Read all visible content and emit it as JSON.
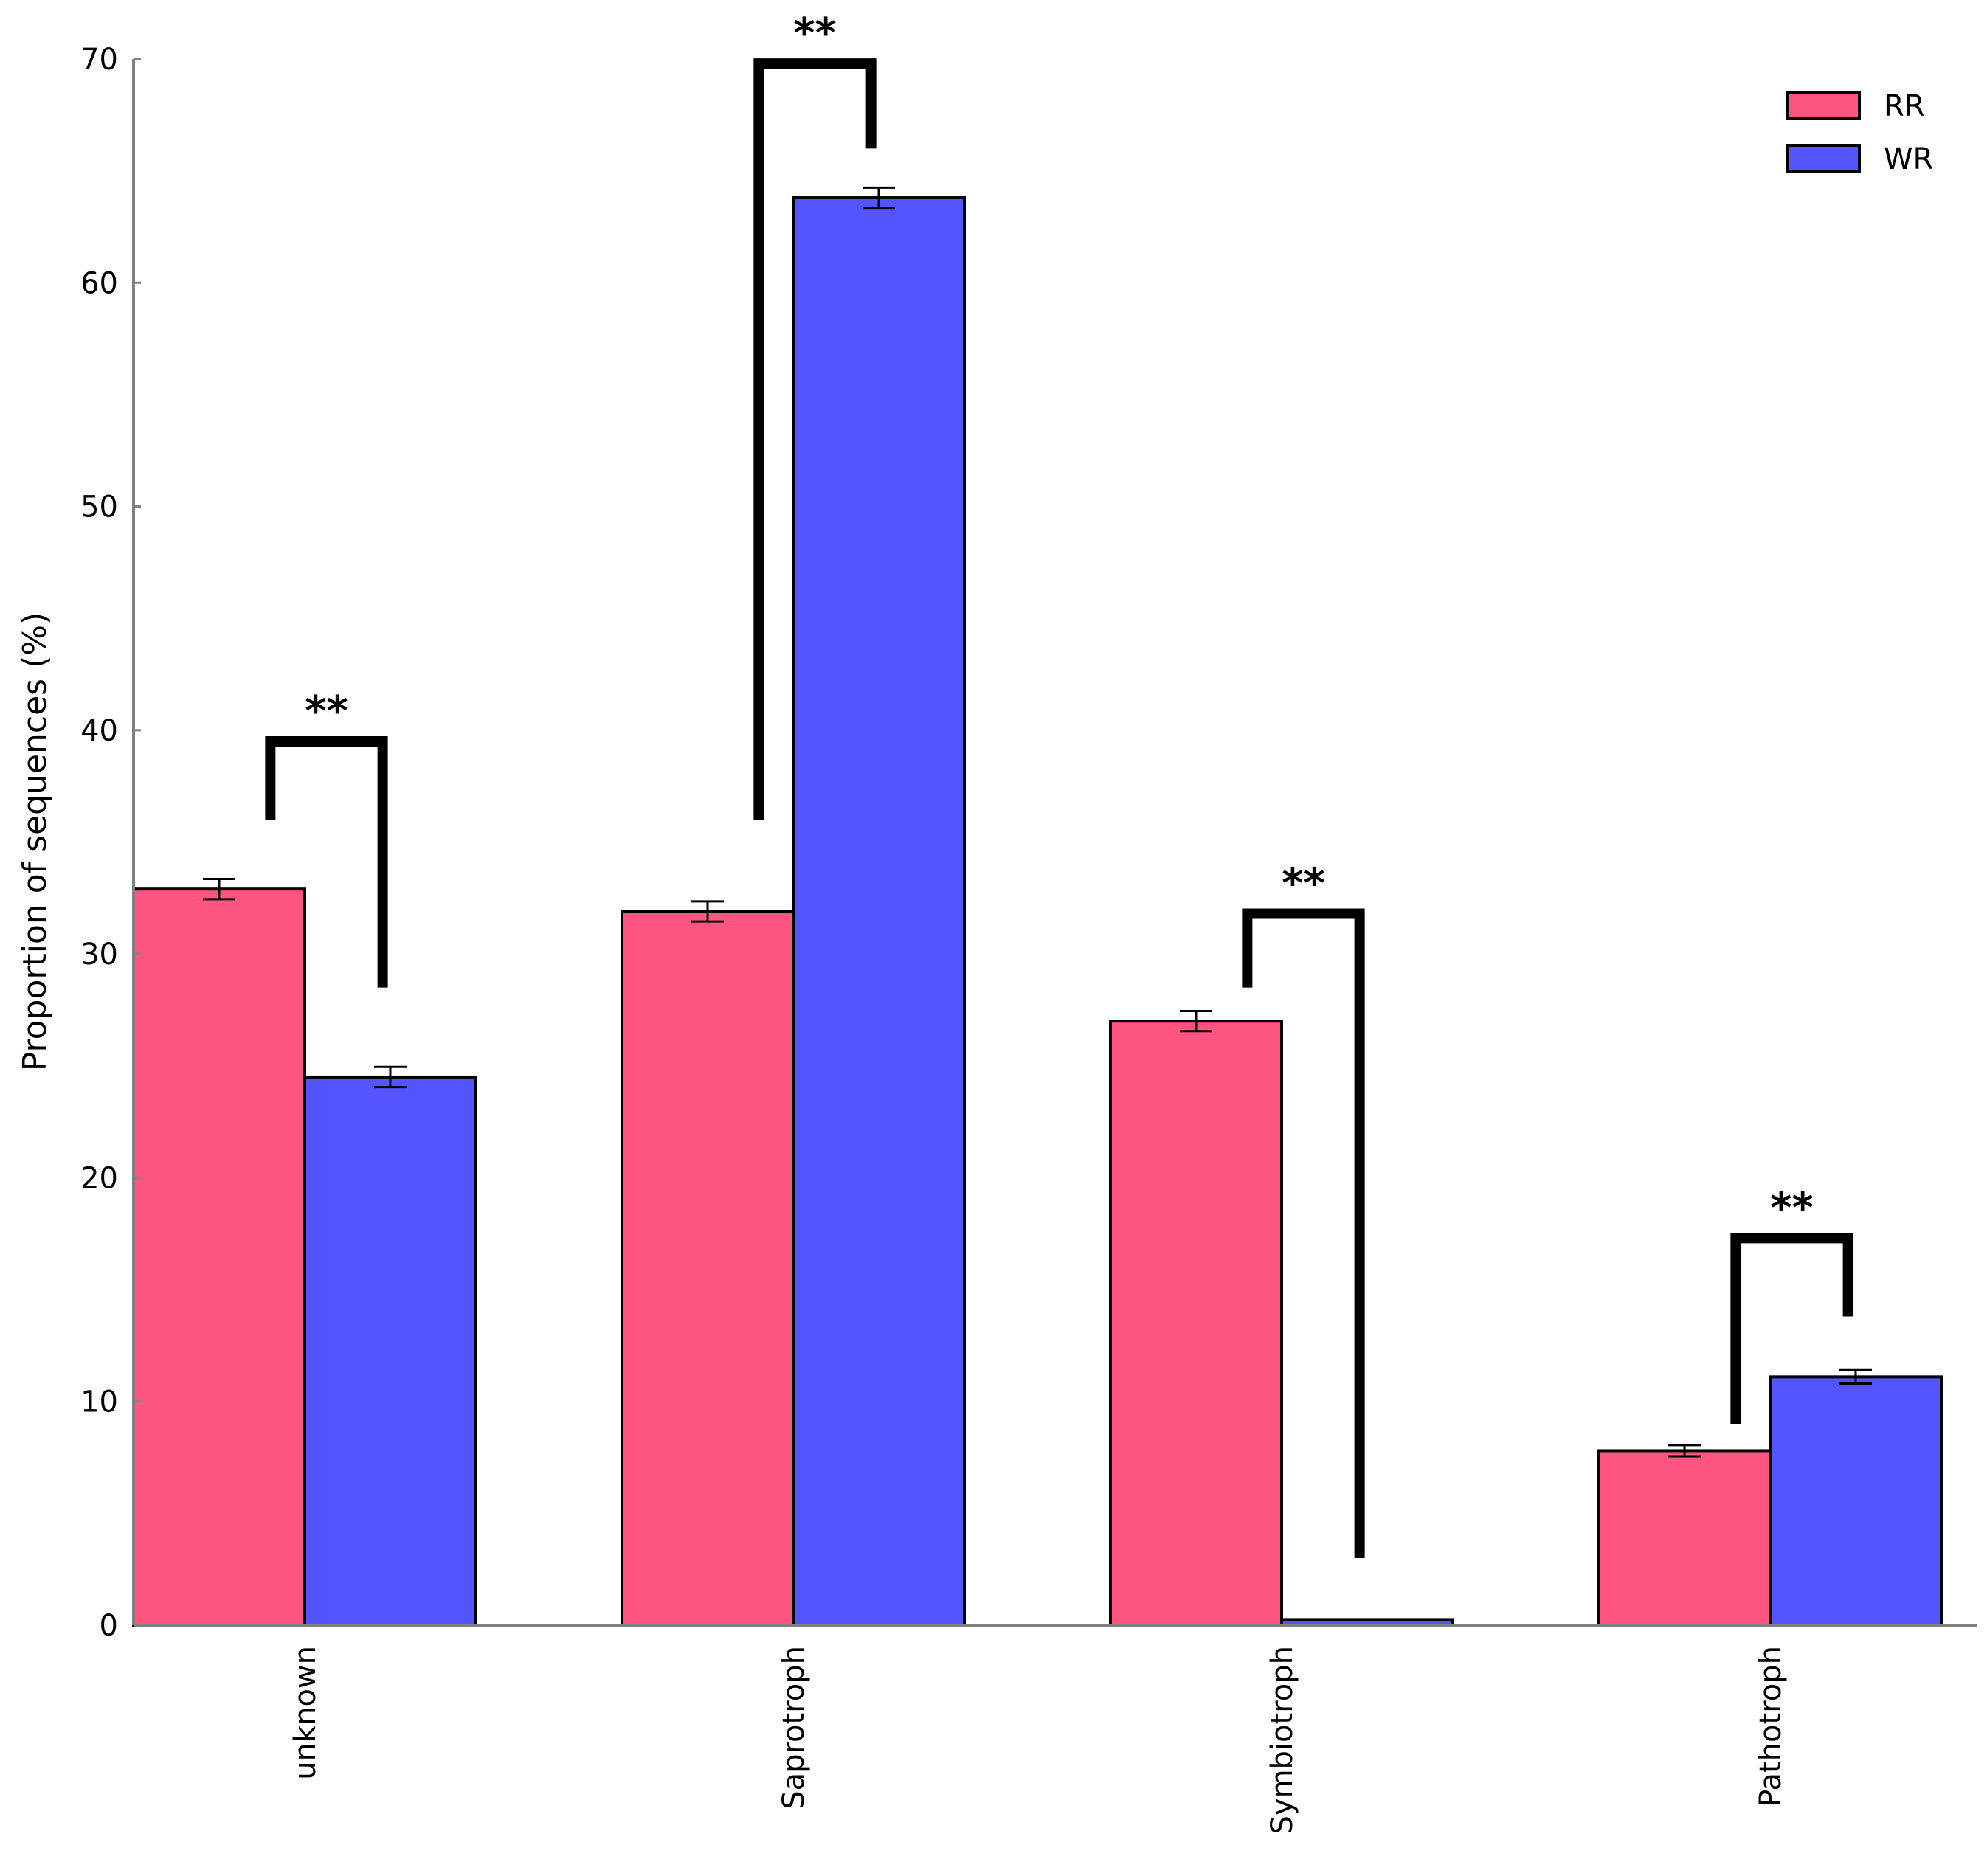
{
  "chart_data": {
    "type": "bar",
    "title": "",
    "xlabel": "",
    "ylabel": "Proportion of sequences (%)",
    "ylim": [
      0,
      70
    ],
    "yticks": [
      0,
      10,
      20,
      30,
      40,
      50,
      60,
      70
    ],
    "grid": false,
    "legend_position": "top-right",
    "categories": [
      "unknown",
      "Saprotroph",
      "Symbiotroph",
      "Pathotroph"
    ],
    "series": [
      {
        "name": "RR",
        "color": "#ff5580",
        "values": [
          32.9,
          31.9,
          27.0,
          7.8
        ],
        "errors": [
          0.45,
          0.45,
          0.45,
          0.25
        ]
      },
      {
        "name": "WR",
        "color": "#5555ff",
        "values": [
          24.5,
          63.8,
          0.25,
          11.1
        ],
        "errors": [
          0.45,
          0.45,
          0.0,
          0.3
        ]
      }
    ],
    "significance": [
      {
        "category": "unknown",
        "label": "**",
        "bracket_top": 39.5,
        "left_leg_bottom": 36.0,
        "right_leg_bottom": 28.5
      },
      {
        "category": "Saprotroph",
        "label": "**",
        "bracket_top": 69.8,
        "left_leg_bottom": 36.0,
        "right_leg_bottom": 66.0
      },
      {
        "category": "Symbiotroph",
        "label": "**",
        "bracket_top": 31.8,
        "left_leg_bottom": 28.5,
        "right_leg_bottom": 3.0
      },
      {
        "category": "Pathotroph",
        "label": "**",
        "bracket_top": 17.3,
        "left_leg_bottom": 9.0,
        "right_leg_bottom": 13.8
      }
    ]
  }
}
